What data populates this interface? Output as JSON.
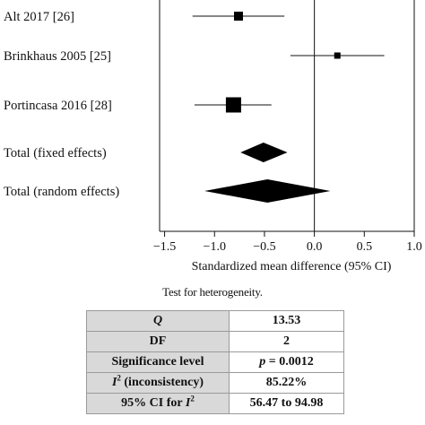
{
  "chart_data": {
    "type": "forest",
    "xlabel": "Standardized mean difference (95% CI)",
    "xlim": [
      -1.55,
      1.0
    ],
    "ticks": [
      -1.5,
      -1.0,
      -0.5,
      0.0,
      0.5,
      1.0
    ],
    "tick_labels": [
      "−1.5",
      "−1.0",
      "−0.5",
      "0.0",
      "0.5",
      "1.0"
    ],
    "reference_line": 0.0,
    "studies": [
      {
        "label": "Alt 2017 [26]",
        "estimate": -0.76,
        "ci": [
          -1.22,
          -0.3
        ],
        "weight": "small"
      },
      {
        "label": "Brinkhaus 2005 [25]",
        "estimate": 0.23,
        "ci": [
          -0.24,
          0.7
        ],
        "weight": "smallest"
      },
      {
        "label": "Portincasa 2016 [28]",
        "estimate": -0.81,
        "ci": [
          -1.2,
          -0.43
        ],
        "weight": "large"
      }
    ],
    "pooled": [
      {
        "label": "Total (fixed effects)",
        "estimate": -0.51,
        "ci": [
          -0.74,
          -0.27
        ]
      },
      {
        "label": "Total (random effects)",
        "estimate": -0.47,
        "ci": [
          -1.1,
          0.16
        ]
      }
    ]
  },
  "heterogeneity": {
    "title": "Test for heterogeneity.",
    "rows": [
      {
        "label": "Q",
        "value": "13.53"
      },
      {
        "label": "DF",
        "value": "2"
      },
      {
        "label": "Significance level",
        "value_prefix": "p",
        "value_rest": " = 0.0012"
      },
      {
        "label_main": "I",
        "label_sup": "2",
        "label_rest": " (inconsistency)",
        "value": "85.22%"
      },
      {
        "label_prefix": "95% CI for ",
        "label_main": "I",
        "label_sup": "2",
        "value": "56.47 to 94.98"
      }
    ]
  }
}
